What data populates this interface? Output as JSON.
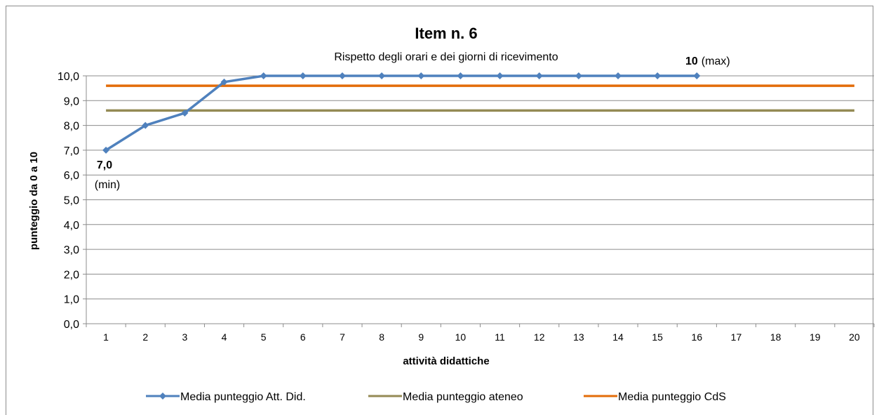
{
  "chart_data": {
    "type": "line",
    "title": "Item n. 6",
    "subtitle": "Rispetto degli orari e dei giorni di ricevimento",
    "xlabel": "attività didattiche",
    "ylabel": "punteggio da 0 a 10",
    "categories": [
      "1",
      "2",
      "3",
      "4",
      "5",
      "6",
      "7",
      "8",
      "9",
      "10",
      "11",
      "12",
      "13",
      "14",
      "15",
      "16",
      "17",
      "18",
      "19",
      "20"
    ],
    "ylim": [
      0,
      10
    ],
    "y_ticks": [
      "0,0",
      "1,0",
      "2,0",
      "3,0",
      "4,0",
      "5,0",
      "6,0",
      "7,0",
      "8,0",
      "9,0",
      "10,0"
    ],
    "grid": true,
    "legend_position": "bottom",
    "series": [
      {
        "name": "Media punteggio Att. Did.",
        "color": "#4F81BD",
        "marker": "diamond",
        "values": [
          7.0,
          8.0,
          8.5,
          9.75,
          10,
          10,
          10,
          10,
          10,
          10,
          10,
          10,
          10,
          10,
          10,
          10,
          null,
          null,
          null,
          null
        ]
      },
      {
        "name": "Media punteggio ateneo",
        "color": "#948A54",
        "marker": "none",
        "values": [
          8.6,
          8.6,
          8.6,
          8.6,
          8.6,
          8.6,
          8.6,
          8.6,
          8.6,
          8.6,
          8.6,
          8.6,
          8.6,
          8.6,
          8.6,
          8.6,
          8.6,
          8.6,
          8.6,
          8.6
        ]
      },
      {
        "name": "Media punteggio CdS",
        "color": "#E36C09",
        "marker": "none",
        "values": [
          9.6,
          9.6,
          9.6,
          9.6,
          9.6,
          9.6,
          9.6,
          9.6,
          9.6,
          9.6,
          9.6,
          9.6,
          9.6,
          9.6,
          9.6,
          9.6,
          9.6,
          9.6,
          9.6,
          9.6
        ]
      }
    ],
    "annotations": {
      "min_value": "7,0",
      "min_label": "(min)",
      "max_value": "10",
      "max_label": "(max)"
    }
  }
}
